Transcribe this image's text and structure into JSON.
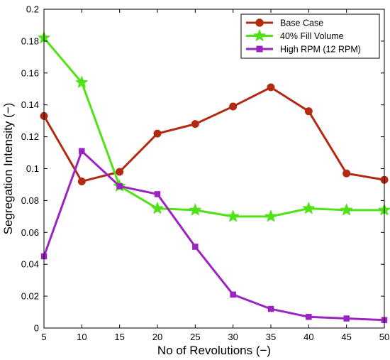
{
  "chart_data": {
    "type": "line",
    "title": "",
    "xlabel": "No of Revolutions (−)",
    "ylabel": "Segregation Intensity (−)",
    "x": [
      5,
      10,
      15,
      20,
      25,
      30,
      35,
      40,
      45,
      50
    ],
    "xlim": [
      5,
      50
    ],
    "ylim": [
      0,
      0.2
    ],
    "xticks": [
      "5",
      "10",
      "15",
      "20",
      "25",
      "30",
      "35",
      "40",
      "45",
      "50"
    ],
    "yticks": [
      "0",
      "0.02",
      "0.04",
      "0.06",
      "0.08",
      "0.1",
      "0.12",
      "0.14",
      "0.16",
      "0.18",
      "0.2"
    ],
    "grid": false,
    "legend_position": "top-right",
    "series": [
      {
        "name": "Base Case",
        "color": "#b22a12",
        "marker": "circle",
        "values": [
          0.133,
          0.092,
          0.098,
          0.122,
          0.128,
          0.139,
          0.151,
          0.136,
          0.097,
          0.093
        ]
      },
      {
        "name": "40% Fill Volume",
        "color": "#4fe316",
        "marker": "star",
        "values": [
          0.182,
          0.154,
          0.089,
          0.075,
          0.074,
          0.07,
          0.07,
          0.075,
          0.074,
          0.074
        ]
      },
      {
        "name": "High RPM (12 RPM)",
        "color": "#9a23c2",
        "marker": "square",
        "values": [
          0.045,
          0.111,
          0.089,
          0.084,
          0.051,
          0.021,
          0.012,
          0.007,
          0.006,
          0.005
        ]
      }
    ]
  }
}
